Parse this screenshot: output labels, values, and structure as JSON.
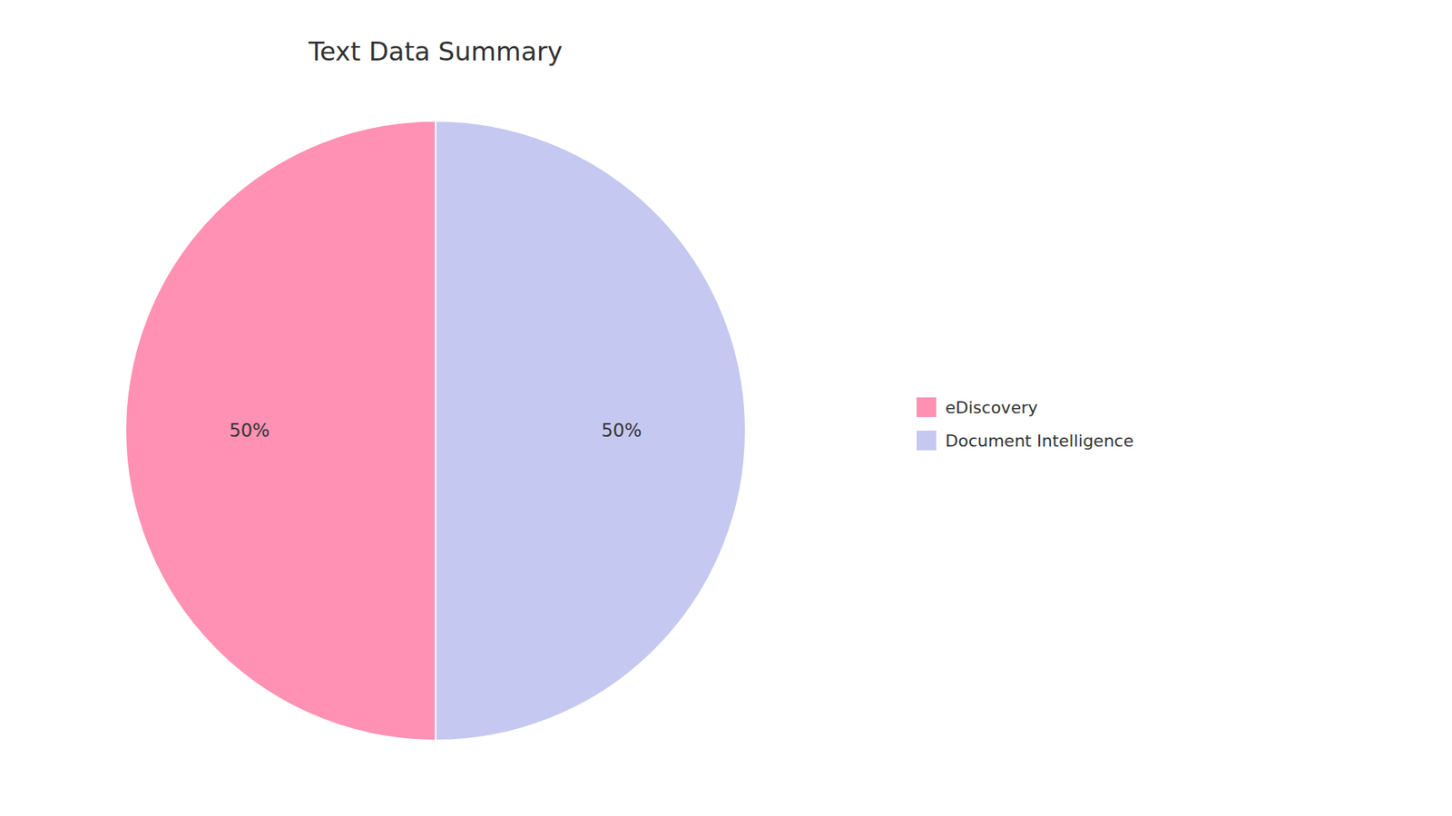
{
  "chart_data": {
    "type": "pie",
    "title": "Text Data Summary",
    "categories": [
      "Document Intelligence",
      "eDiscovery"
    ],
    "values": [
      50,
      50
    ],
    "value_labels": [
      "50%",
      "50%"
    ],
    "colors": [
      "#C5C8F0",
      "#FF91B4"
    ],
    "data_labels": true,
    "legend": "right"
  }
}
